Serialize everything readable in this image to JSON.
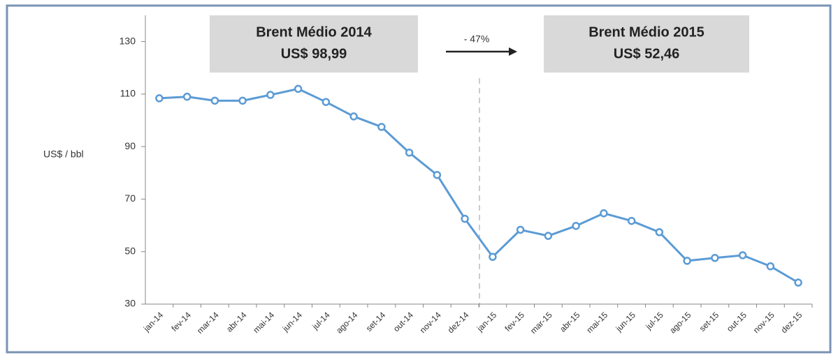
{
  "chart_data": {
    "type": "line",
    "y_label": "US$ / bbl",
    "categories": [
      "jan-14",
      "fev-14",
      "mar-14",
      "abr-14",
      "mai-14",
      "jun-14",
      "jul-14",
      "ago-14",
      "set-14",
      "out-14",
      "nov-14",
      "dez-14",
      "jan-15",
      "fev-15",
      "mar-15",
      "abr-15",
      "mai-15",
      "jun-15",
      "jul-15",
      "ago-15",
      "set-15",
      "out-15",
      "nov-15",
      "dez-15"
    ],
    "series": [
      {
        "color": "#5b9bd5",
        "values": [
          108.4,
          109,
          107.5,
          107.5,
          109.7,
          112,
          107,
          101.5,
          97.5,
          87.7,
          79.2,
          62.5,
          48,
          58.3,
          56,
          59.8,
          64.6,
          61.7,
          57.4,
          46.5,
          47.6,
          48.6,
          44.4,
          38.2
        ]
      }
    ],
    "ylim": [
      30,
      140
    ],
    "yticks": [
      30,
      50,
      70,
      90,
      110,
      130
    ],
    "annotations": [
      {
        "title": "Brent Médio 2014",
        "value": "US$ 98,99"
      },
      {
        "title": "Brent Médio 2015",
        "value": "US$ 52,46"
      }
    ],
    "change": "- 47%"
  }
}
